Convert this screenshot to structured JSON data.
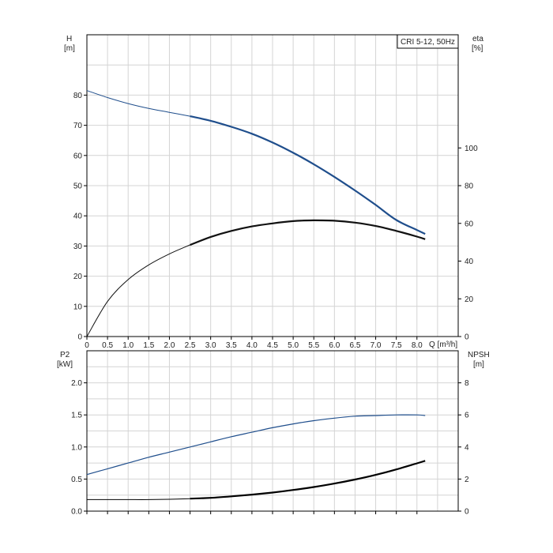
{
  "chart_data": [
    {
      "type": "line",
      "legend": "CRI 5-12, 50Hz",
      "xlabel": "Q [m³/h]",
      "x_ticks": [
        "0",
        "0.5",
        "1.0",
        "1.5",
        "2.0",
        "2.5",
        "3.0",
        "3.5",
        "4.0",
        "4.5",
        "5.0",
        "5.5",
        "6.0",
        "6.5",
        "7.0",
        "7.5",
        "8.0"
      ],
      "xlim": [
        0,
        9.0
      ],
      "ylabel_left": {
        "name": "H",
        "unit": "[m]"
      },
      "ylabel_right": {
        "name": "eta",
        "unit": "[%]"
      },
      "ylim_left": [
        0,
        100
      ],
      "y_ticks_left": [
        "0",
        "10",
        "20",
        "30",
        "40",
        "50",
        "60",
        "70",
        "80"
      ],
      "ylim_right": [
        0,
        160
      ],
      "y_ticks_right": [
        "0",
        "20",
        "40",
        "60",
        "80",
        "100"
      ],
      "grid": true,
      "series": [
        {
          "axis": "left",
          "color": "#1f4e8c",
          "x": [
            0,
            0.5,
            1.0,
            1.5,
            2.0,
            2.5,
            3.0,
            3.5,
            4.0,
            4.5,
            5.0,
            5.5,
            6.0,
            6.5,
            7.0,
            7.5,
            8.0,
            8.2
          ],
          "y": [
            81.5,
            79.2,
            77.2,
            75.6,
            74.3,
            73.0,
            71.5,
            69.5,
            67.2,
            64.3,
            60.9,
            57.1,
            52.9,
            48.4,
            43.6,
            38.6,
            35.3,
            34.0
          ],
          "y_thin_until_x": 2.5
        },
        {
          "axis": "right",
          "color": "#111111",
          "x": [
            0,
            0.5,
            1.0,
            1.5,
            2.0,
            2.5,
            3.0,
            3.5,
            4.0,
            4.5,
            5.0,
            5.5,
            6.0,
            6.5,
            7.0,
            7.5,
            8.0,
            8.2
          ],
          "y": [
            0,
            18.6,
            30.2,
            38.0,
            43.8,
            48.6,
            52.8,
            56.0,
            58.4,
            60.0,
            61.2,
            61.6,
            61.4,
            60.4,
            58.6,
            56.0,
            53.0,
            51.6
          ],
          "y_thin_until_x": 2.5
        }
      ]
    },
    {
      "type": "line",
      "xlim": [
        0,
        9.0
      ],
      "ylabel_left": {
        "name": "P2",
        "unit": "[kW]"
      },
      "ylabel_right": {
        "name": "NPSH",
        "unit": "[m]"
      },
      "ylim_left": [
        0,
        2.5
      ],
      "y_ticks_left": [
        "0.0",
        "0.5",
        "1.0",
        "1.5",
        "2.0"
      ],
      "ylim_right": [
        0,
        10
      ],
      "y_ticks_right": [
        "0",
        "2",
        "4",
        "6",
        "8"
      ],
      "grid": true,
      "series": [
        {
          "axis": "left",
          "color": "#1f4e8c",
          "x": [
            0,
            0.5,
            1.0,
            1.5,
            2.0,
            2.5,
            3.0,
            3.5,
            4.0,
            4.5,
            5.0,
            5.5,
            6.0,
            6.5,
            7.0,
            7.5,
            8.0,
            8.2
          ],
          "y": [
            0.57,
            0.66,
            0.75,
            0.84,
            0.92,
            1.0,
            1.08,
            1.16,
            1.23,
            1.3,
            1.36,
            1.41,
            1.45,
            1.48,
            1.49,
            1.5,
            1.5,
            1.49
          ]
        },
        {
          "axis": "right",
          "color": "#000000",
          "x": [
            0,
            0.5,
            1.0,
            1.5,
            2.0,
            2.5,
            3.0,
            3.5,
            4.0,
            4.5,
            5.0,
            5.5,
            6.0,
            6.5,
            7.0,
            7.5,
            8.0,
            8.2
          ],
          "y": [
            0.72,
            0.72,
            0.72,
            0.72,
            0.74,
            0.78,
            0.83,
            0.92,
            1.03,
            1.16,
            1.32,
            1.5,
            1.72,
            1.97,
            2.26,
            2.6,
            2.98,
            3.14
          ],
          "y_thin_until_x": 2.5
        }
      ]
    }
  ]
}
